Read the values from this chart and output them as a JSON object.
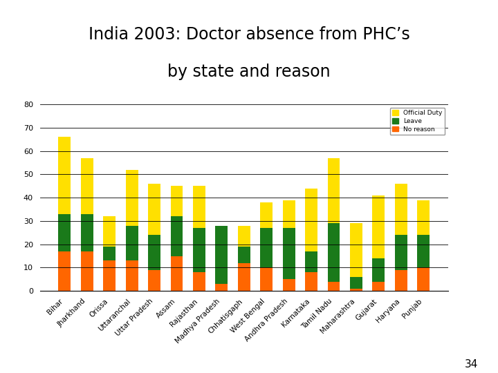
{
  "title_line1": "India 2003: Doctor absence from PHC’s",
  "title_line2": "by state and reason",
  "states": [
    "Bihar",
    "Jharkhand",
    "Orissa",
    "Uttaranchal",
    "Uttar Pradesh",
    "Assam",
    "Rajasthan",
    "Madhya Pradesh",
    "Chhatisgарh",
    "West Bengal",
    "Andhra Pradesh",
    "Karnataka",
    "Tamil Nadu",
    "Maharashtra",
    "Gujarat",
    "Haryana",
    "Punjab"
  ],
  "no_reason": [
    17,
    17,
    13,
    13,
    9,
    15,
    8,
    3,
    12,
    10,
    5,
    8,
    4,
    1,
    4,
    9,
    10
  ],
  "leave": [
    16,
    16,
    6,
    15,
    15,
    17,
    19,
    25,
    7,
    17,
    22,
    9,
    25,
    5,
    10,
    15,
    14
  ],
  "official": [
    33,
    24,
    13,
    24,
    22,
    13,
    18,
    0,
    9,
    11,
    12,
    27,
    28,
    23,
    27,
    22,
    15
  ],
  "color_no_reason": "#FF6600",
  "color_leave": "#1a7a1a",
  "color_official": "#FFE000",
  "ylim": [
    0,
    80
  ],
  "yticks": [
    0,
    10,
    20,
    30,
    40,
    50,
    60,
    70,
    80
  ],
  "legend_labels": [
    "Official Duty",
    "Leave",
    "No reason"
  ],
  "footnote": "34",
  "bg_color": "#FFFFFF"
}
